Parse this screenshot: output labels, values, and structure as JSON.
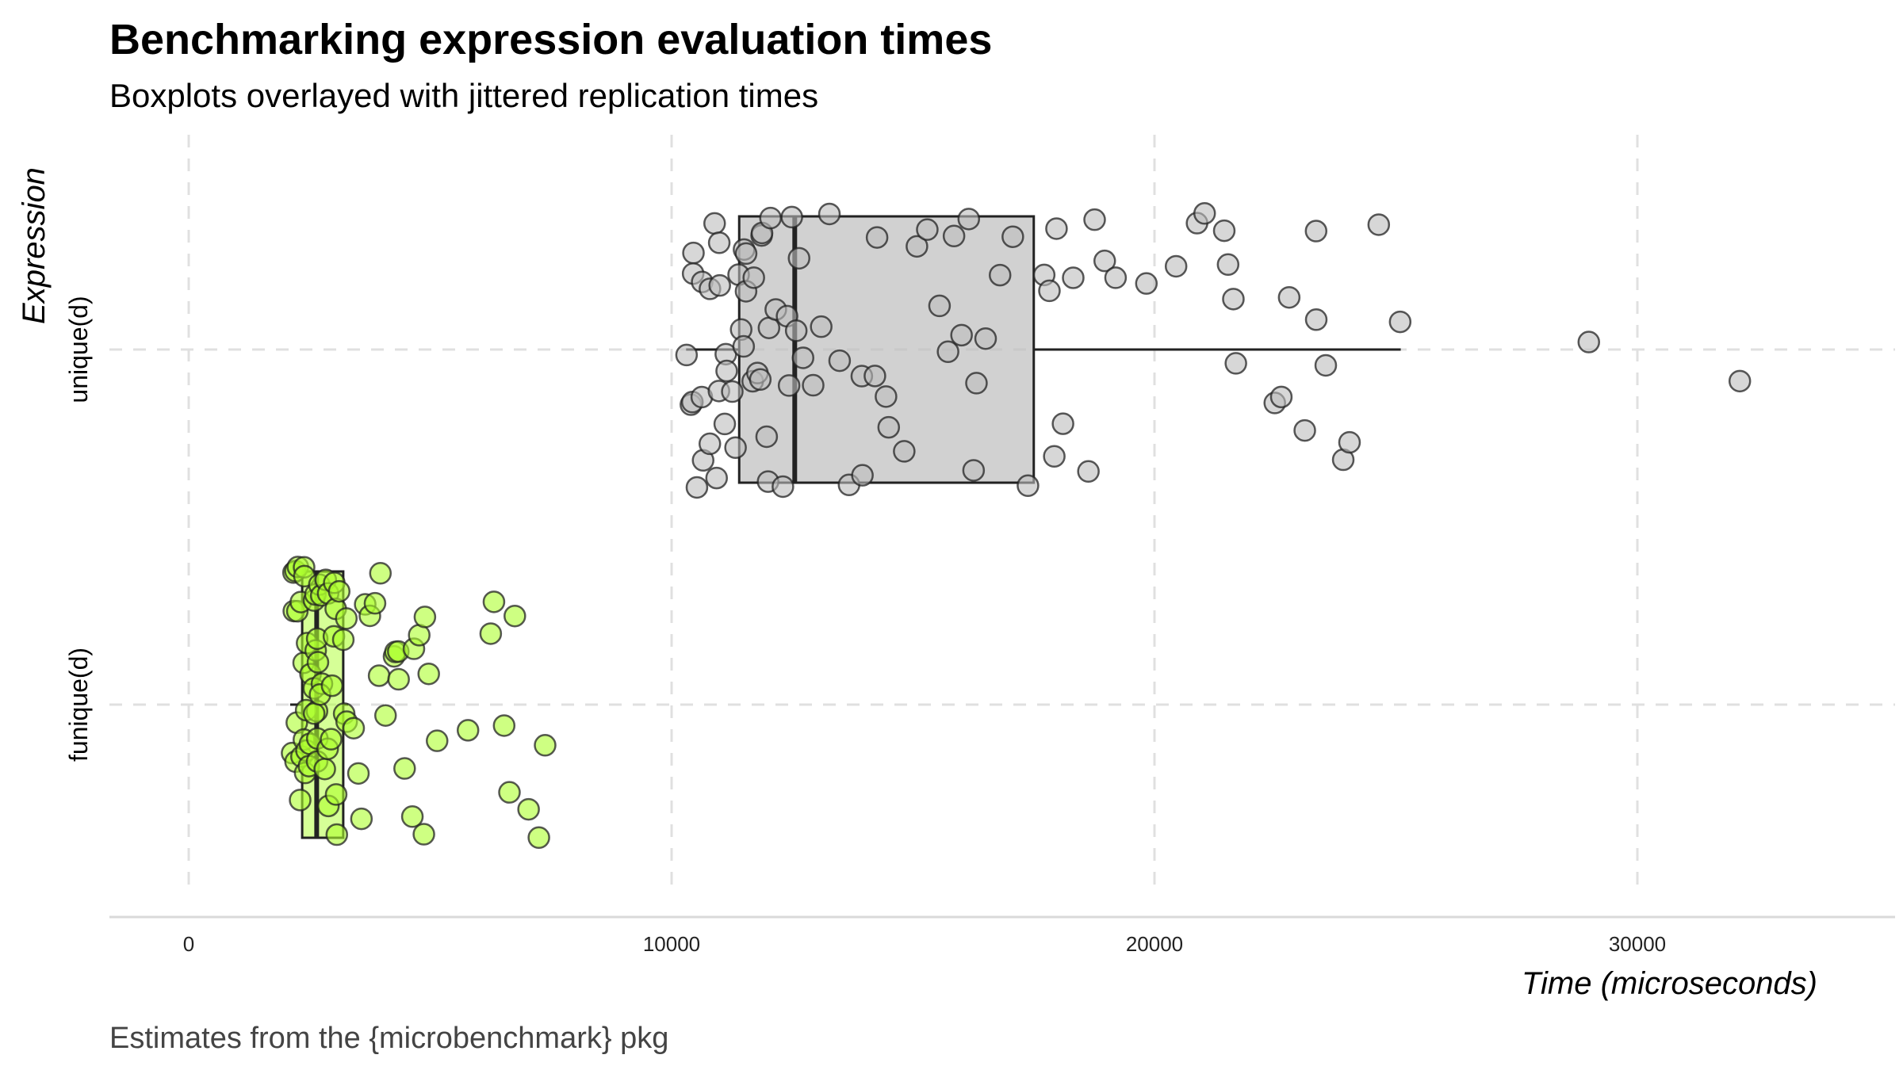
{
  "chart_data": {
    "type": "boxplot+jitter",
    "title": "Benchmarking expression evaluation times",
    "subtitle": "Boxplots overlayed with jittered replication times",
    "xlabel": "Time (microseconds)",
    "ylabel": "Expression",
    "caption": "Estimates from the {microbenchmark} pkg",
    "xlim": [
      -1700,
      35500
    ],
    "x_ticks": [
      0,
      10000,
      20000,
      30000
    ],
    "x_tick_labels": [
      "0",
      "10000",
      "20000",
      "30000"
    ],
    "grid": true,
    "orientation": "horizontal",
    "categories": [
      "unique(d)",
      "funique(d)"
    ],
    "series": [
      {
        "category": "unique(d)",
        "color": "#bdbdbd",
        "box": {
          "whisker_low": 10300,
          "q1": 11400,
          "median": 12550,
          "q3": 17500,
          "whisker_high": 25100
        },
        "values": [
          10300,
          10350,
          10400,
          10450,
          10500,
          10550,
          10600,
          10650,
          10700,
          10750,
          10800,
          10850,
          10900,
          10950,
          11000,
          11050,
          11100,
          11150,
          11200,
          11250,
          11300,
          11350,
          11400,
          11450,
          11500,
          11550,
          11600,
          11650,
          11700,
          11750,
          11800,
          11850,
          11900,
          11950,
          12000,
          12050,
          12100,
          12200,
          12300,
          12400,
          12450,
          12500,
          12550,
          12600,
          12700,
          12900,
          13100,
          13300,
          13500,
          13700,
          13900,
          14000,
          14200,
          14300,
          14400,
          14500,
          14800,
          15100,
          15300,
          15500,
          15700,
          15900,
          16000,
          16100,
          16200,
          16300,
          16500,
          16800,
          17100,
          17400,
          17700,
          17800,
          17900,
          18000,
          18100,
          18300,
          18600,
          18800,
          19000,
          19200,
          19800,
          20500,
          20900,
          21000,
          21400,
          21500,
          21600,
          21700,
          22500,
          22600,
          22800,
          23100,
          23300,
          23400,
          23500,
          23900,
          24000,
          24600,
          25100,
          29050,
          32100
        ]
      },
      {
        "category": "funique(d)",
        "color": "#adff2f",
        "box": {
          "whisker_low": 2100,
          "q1": 2350,
          "median": 2650,
          "q3": 3200,
          "whisker_high": 3300
        },
        "values": [
          2100,
          2150,
          2200,
          2200,
          2250,
          2250,
          2300,
          2300,
          2300,
          2350,
          2350,
          2350,
          2400,
          2400,
          2400,
          2450,
          2450,
          2450,
          2500,
          2500,
          2500,
          2550,
          2550,
          2550,
          2600,
          2600,
          2600,
          2650,
          2650,
          2650,
          2700,
          2700,
          2700,
          2750,
          2750,
          2750,
          2800,
          2800,
          2850,
          2850,
          2900,
          2900,
          2950,
          2950,
          3000,
          3000,
          3050,
          3100,
          3100,
          3150,
          3200,
          3250,
          3300,
          3400,
          3500,
          3550,
          3600,
          3700,
          3800,
          3900,
          4000,
          4100,
          4200,
          4300,
          4350,
          4400,
          4500,
          4600,
          4700,
          4800,
          4850,
          4900,
          5000,
          5100,
          5800,
          6200,
          6300,
          6500,
          6700,
          6800,
          7000,
          7300,
          7400
        ]
      }
    ]
  }
}
